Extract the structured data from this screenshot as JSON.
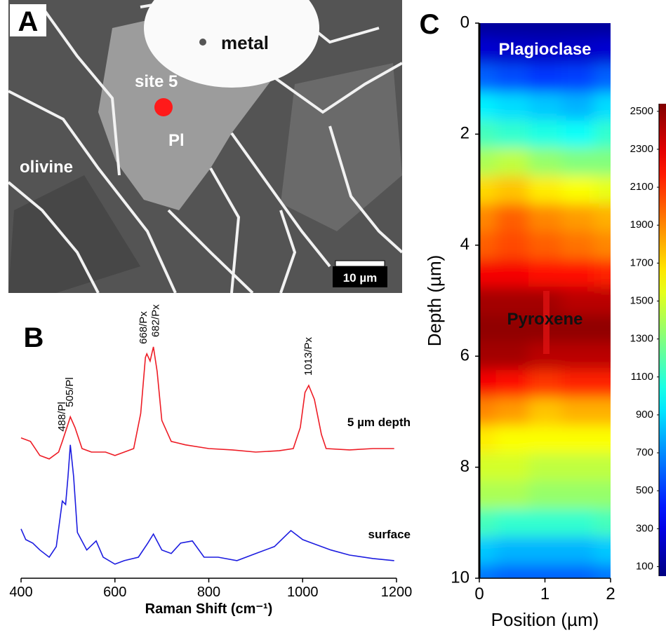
{
  "panel_a": {
    "letter": "A",
    "metal": "metal",
    "site": "site 5",
    "plagioclase": "Pl",
    "olivine": "olivine",
    "scale_bar": "10 µm"
  },
  "chart_data": [
    {
      "type": "line",
      "label": "B",
      "x_label": "Raman Shift (cm⁻¹)",
      "xlim": [
        400,
        1200
      ],
      "xticks": [
        400,
        600,
        800,
        1000,
        1200
      ],
      "ylim": [
        -4,
        100
      ],
      "series": [
        {
          "name": "5 µm depth",
          "color": "#ee1c25",
          "x": [
            400,
            420,
            440,
            460,
            480,
            488,
            500,
            505,
            515,
            530,
            550,
            580,
            600,
            620,
            640,
            655,
            665,
            668,
            675,
            682,
            690,
            700,
            720,
            750,
            800,
            850,
            900,
            950,
            980,
            995,
            1005,
            1013,
            1025,
            1040,
            1050,
            1100,
            1150,
            1195
          ],
          "values": [
            48.7,
            47.4,
            42.1,
            40.8,
            43.4,
            47.4,
            53.9,
            56.6,
            52.6,
            44.7,
            43.4,
            43.4,
            42.1,
            43.4,
            44.7,
            57.9,
            78.9,
            80.3,
            77.6,
            82.9,
            73.7,
            55.3,
            47.4,
            46.1,
            44.7,
            44.2,
            43.4,
            43.9,
            44.7,
            52.6,
            65.8,
            68.4,
            63.2,
            50,
            44.7,
            44.2,
            44.7,
            44.7
          ]
        },
        {
          "name": "surface",
          "color": "#1c1ce0",
          "x": [
            400,
            410,
            425,
            440,
            460,
            475,
            488,
            495,
            500,
            505,
            512,
            520,
            540,
            560,
            575,
            600,
            620,
            650,
            670,
            682,
            700,
            720,
            740,
            765,
            790,
            820,
            860,
            900,
            940,
            975,
            1000,
            1020,
            1060,
            1100,
            1150,
            1195
          ],
          "values": [
            14.5,
            10.5,
            9.2,
            6.6,
            3.9,
            7.9,
            25,
            23.7,
            34.2,
            46.1,
            34.2,
            13.2,
            6.6,
            10,
            3.9,
            1.3,
            2.6,
            3.9,
            9.2,
            12.6,
            6.6,
            5.3,
            9.2,
            10,
            3.9,
            3.9,
            2.6,
            5.3,
            7.9,
            13.9,
            10.5,
            9.2,
            6.6,
            4.7,
            3.4,
            2.6
          ]
        }
      ],
      "annotations": [
        {
          "text": "488/Pl",
          "x": 488
        },
        {
          "text": "505/Pl",
          "x": 505
        },
        {
          "text": "668/Px",
          "x": 668
        },
        {
          "text": "682/Px",
          "x": 682
        },
        {
          "text": "1013/Px",
          "x": 1013
        }
      ]
    },
    {
      "type": "heatmap",
      "label": "C",
      "x_label": "Position (µm)",
      "y_label": "Depth (µm)",
      "xlim": [
        0,
        2
      ],
      "xticks": [
        0,
        1,
        2
      ],
      "ylim": [
        0,
        10
      ],
      "yticks": [
        0,
        2,
        4,
        6,
        8,
        10
      ],
      "y_inverted": true,
      "colormap": "jet",
      "zlim": [
        50,
        2540
      ],
      "zticks": [
        100,
        300,
        500,
        700,
        900,
        1100,
        1300,
        1500,
        1700,
        1900,
        2100,
        2300,
        2500
      ],
      "x": [
        0,
        0.5,
        1,
        1.5,
        2
      ],
      "y": [
        0,
        0.5,
        1,
        1.5,
        2,
        2.5,
        3,
        3.5,
        4,
        4.5,
        5,
        5.5,
        6,
        6.5,
        7,
        7.5,
        8,
        8.5,
        9,
        9.5,
        10
      ],
      "z": [
        [
          120,
          120,
          120,
          120,
          120
        ],
        [
          250,
          230,
          220,
          230,
          250
        ],
        [
          600,
          550,
          500,
          520,
          600
        ],
        [
          950,
          900,
          850,
          800,
          900
        ],
        [
          1150,
          1100,
          1050,
          1000,
          1100
        ],
        [
          1400,
          1450,
          1350,
          1300,
          1300
        ],
        [
          1700,
          1750,
          1650,
          1600,
          1550
        ],
        [
          1900,
          2000,
          1900,
          1850,
          1800
        ],
        [
          2000,
          2050,
          2000,
          1950,
          1900
        ],
        [
          2250,
          2250,
          2200,
          2200,
          2150
        ],
        [
          2450,
          2450,
          2450,
          2400,
          2400
        ],
        [
          2500,
          2500,
          2500,
          2500,
          2500
        ],
        [
          2450,
          2450,
          2400,
          2400,
          2400
        ],
        [
          2250,
          2200,
          2100,
          2150,
          2150
        ],
        [
          1900,
          1850,
          1750,
          1800,
          1800
        ],
        [
          1650,
          1600,
          1600,
          1600,
          1600
        ],
        [
          1500,
          1500,
          1450,
          1450,
          1450
        ],
        [
          1400,
          1400,
          1350,
          1350,
          1350
        ],
        [
          1150,
          1100,
          1100,
          1100,
          1150
        ],
        [
          850,
          800,
          800,
          800,
          850
        ],
        [
          650,
          600,
          600,
          600,
          650
        ]
      ],
      "annotations": [
        {
          "text": "Plagioclase"
        },
        {
          "text": "Pyroxene"
        }
      ]
    }
  ]
}
